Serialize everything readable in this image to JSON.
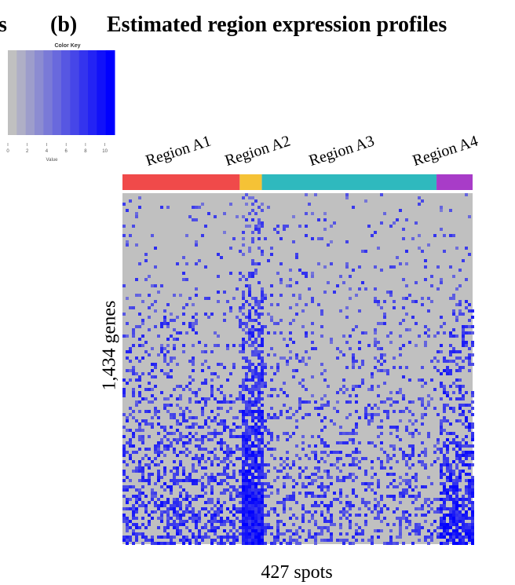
{
  "figure": {
    "cut_letter": "s",
    "panel_label": "(b)",
    "title": "Estimated region expression profiles"
  },
  "color_key": {
    "title": "Color Key",
    "xlabel": "Value",
    "ticks": [
      "0",
      "2",
      "4",
      "6",
      "8",
      "10"
    ],
    "range": [
      0,
      11
    ],
    "low_color": "#c0c0c0",
    "high_color": "#0000ff"
  },
  "chart_data": {
    "type": "heatmap",
    "title": "Estimated region expression profiles",
    "xlabel": "427 spots",
    "ylabel": "1,434 genes",
    "n_rows": 1434,
    "n_cols": 427,
    "value_range": [
      0,
      11
    ],
    "regions": [
      {
        "name": "Region A1",
        "color": "#f04a4a",
        "spots": 143
      },
      {
        "name": "Region A2",
        "color": "#f5c236",
        "spots": 27
      },
      {
        "name": "Region A3",
        "color": "#2fb9be",
        "spots": 213
      },
      {
        "name": "Region A4",
        "color": "#a83cc8",
        "spots": 44
      }
    ]
  }
}
